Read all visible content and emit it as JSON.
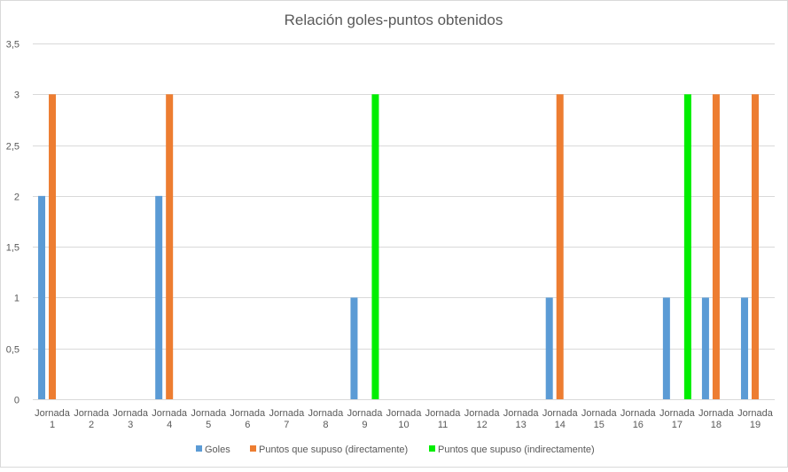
{
  "chart_data": {
    "type": "bar",
    "title": "Relación goles-puntos obtenidos",
    "xlabel": "",
    "ylabel": "",
    "categories": [
      [
        "Jornada",
        "1"
      ],
      [
        "Jornada",
        "2"
      ],
      [
        "Jornada",
        "3"
      ],
      [
        "Jornada",
        "4"
      ],
      [
        "Jornada",
        "5"
      ],
      [
        "Jornada",
        "6"
      ],
      [
        "Jornada",
        "7"
      ],
      [
        "Jornada",
        "8"
      ],
      [
        "Jornada",
        "9"
      ],
      [
        "Jornada",
        "10"
      ],
      [
        "Jornada",
        "11"
      ],
      [
        "Jornada",
        "12"
      ],
      [
        "Jornada",
        "13"
      ],
      [
        "Jornada",
        "14"
      ],
      [
        "Jornada",
        "15"
      ],
      [
        "Jornada",
        "16"
      ],
      [
        "Jornada",
        "17"
      ],
      [
        "Jornada",
        "18"
      ],
      [
        "Jornada",
        "19"
      ]
    ],
    "series": [
      {
        "name": "Goles",
        "color": "#5b9bd5",
        "values": [
          2,
          0,
          0,
          2,
          0,
          0,
          0,
          0,
          1,
          0,
          0,
          0,
          0,
          1,
          0,
          0,
          1,
          1,
          1
        ]
      },
      {
        "name": "Puntos que supuso (directamente)",
        "color": "#ed7d31",
        "values": [
          3,
          0,
          0,
          3,
          0,
          0,
          0,
          0,
          0,
          0,
          0,
          0,
          0,
          3,
          0,
          0,
          0,
          3,
          3
        ]
      },
      {
        "name": "Puntos que supuso (indirectamente)",
        "color": "#00ee00",
        "values": [
          0,
          0,
          0,
          0,
          0,
          0,
          0,
          0,
          3,
          0,
          0,
          0,
          0,
          0,
          0,
          0,
          3,
          0,
          0
        ]
      }
    ],
    "ylim": [
      0,
      3.5
    ],
    "yticks": [
      0,
      0.5,
      1,
      1.5,
      2,
      2.5,
      3,
      3.5
    ],
    "ytick_labels": [
      "0",
      "0,5",
      "1",
      "1,5",
      "2",
      "2,5",
      "3",
      "3,5"
    ],
    "grid": true,
    "legend_position": "bottom",
    "gridline_color": "#d9d9d9",
    "text_color": "#595959"
  }
}
